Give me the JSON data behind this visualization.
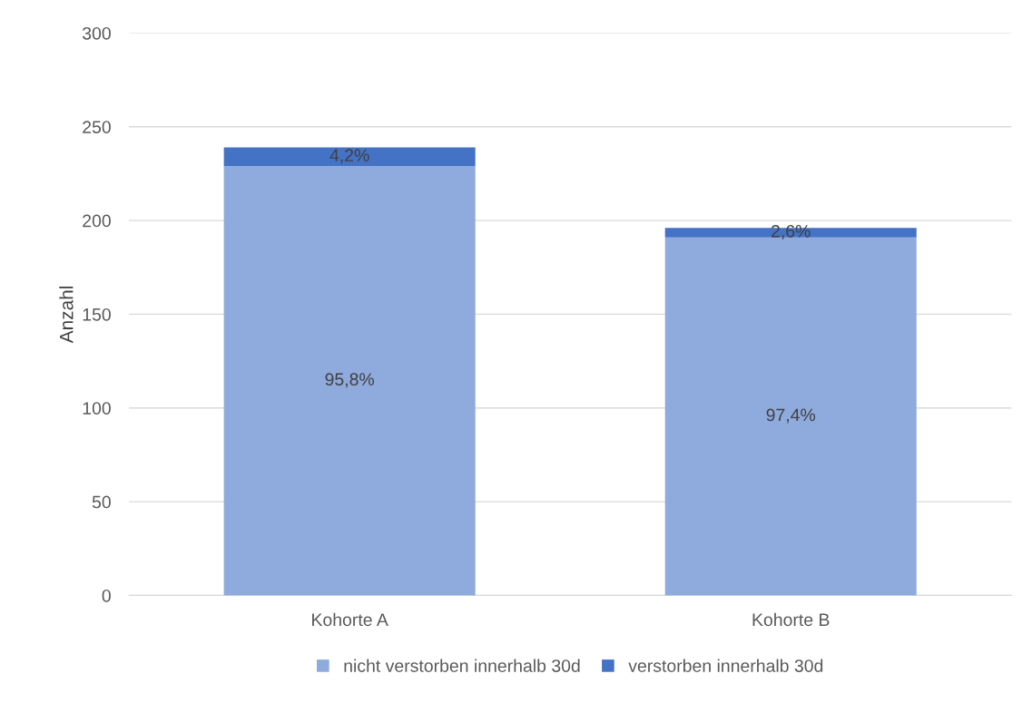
{
  "chart_data": {
    "type": "bar",
    "stacked": true,
    "ylabel": "Anzahl",
    "categories": [
      "Kohorte A",
      "Kohorte B"
    ],
    "series": [
      {
        "name": "nicht verstorben innerhalb 30d",
        "color": "#8faadc",
        "values": [
          229,
          191
        ]
      },
      {
        "name": "verstorben innerhalb 30d",
        "color": "#4472c4",
        "values": [
          10,
          5
        ]
      }
    ],
    "annotations": [
      "95,8%",
      "97,4%",
      "4,2%",
      "2,6%"
    ],
    "ylim": [
      0,
      300
    ],
    "yticks": [
      0,
      50,
      100,
      150,
      200,
      250,
      300
    ],
    "grid": "y",
    "legend": "bottom"
  }
}
